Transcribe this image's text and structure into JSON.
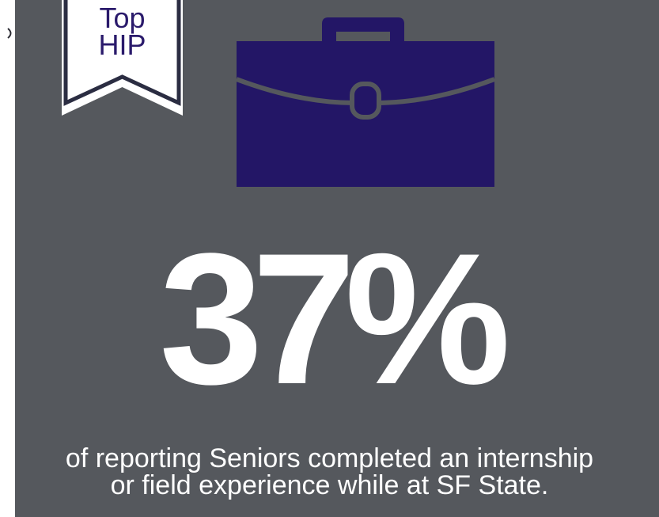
{
  "badge": {
    "line1": "Top",
    "line2": "HIP"
  },
  "icon": "briefcase-icon",
  "stat": {
    "value": "37%"
  },
  "caption": {
    "line1": "of reporting Seniors completed an internship",
    "line2": "or field experience while at SF State."
  },
  "colors": {
    "background": "#55585d",
    "accent": "#231666",
    "badge_text": "#2a1a6b",
    "text": "#ffffff"
  }
}
